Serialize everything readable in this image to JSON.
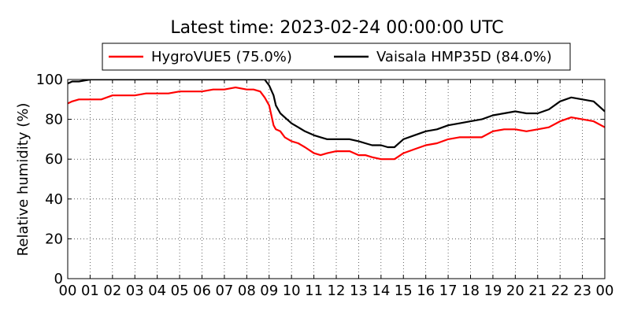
{
  "chart_data": {
    "type": "line",
    "title": "Latest time: 2023-02-24 00:00:00 UTC",
    "xlabel": "",
    "ylabel": "Relative humidity (%)",
    "xlim": [
      0,
      24
    ],
    "ylim": [
      0,
      100
    ],
    "x_ticks": [
      "00",
      "01",
      "02",
      "03",
      "04",
      "05",
      "06",
      "07",
      "08",
      "09",
      "10",
      "11",
      "12",
      "13",
      "14",
      "15",
      "16",
      "17",
      "18",
      "19",
      "20",
      "21",
      "22",
      "23",
      "00"
    ],
    "y_ticks": [
      0,
      20,
      40,
      60,
      80,
      100
    ],
    "grid": true,
    "legend_position": "top-center",
    "series": [
      {
        "name": "HygroVUE5 (75.0%)",
        "color": "#ff0000",
        "x": [
          0.0,
          0.2,
          0.5,
          1.0,
          1.5,
          2.0,
          2.5,
          3.0,
          3.5,
          4.0,
          4.5,
          5.0,
          5.5,
          6.0,
          6.5,
          7.0,
          7.5,
          8.0,
          8.3,
          8.6,
          8.8,
          9.0,
          9.1,
          9.2,
          9.3,
          9.5,
          9.7,
          10.0,
          10.3,
          10.6,
          11.0,
          11.3,
          11.6,
          12.0,
          12.3,
          12.6,
          13.0,
          13.3,
          13.6,
          14.0,
          14.3,
          14.6,
          15.0,
          15.5,
          16.0,
          16.5,
          17.0,
          17.5,
          18.0,
          18.5,
          19.0,
          19.5,
          20.0,
          20.5,
          21.0,
          21.5,
          22.0,
          22.5,
          23.0,
          23.5,
          24.0
        ],
        "values": [
          88,
          89,
          90,
          90,
          90,
          92,
          92,
          92,
          93,
          93,
          93,
          94,
          94,
          94,
          95,
          95,
          96,
          95,
          95,
          94,
          91,
          87,
          82,
          77,
          75,
          74,
          71,
          69,
          68,
          66,
          63,
          62,
          63,
          64,
          64,
          64,
          62,
          62,
          61,
          60,
          60,
          60,
          63,
          65,
          67,
          68,
          70,
          71,
          71,
          71,
          74,
          75,
          75,
          74,
          75,
          76,
          79,
          81,
          80,
          79,
          76
        ]
      },
      {
        "name": "Vaisala HMP35D (84.0%)",
        "color": "#000000",
        "x": [
          0.0,
          0.2,
          0.5,
          1.0,
          1.5,
          2.0,
          3.0,
          4.0,
          5.0,
          6.0,
          7.0,
          8.0,
          8.8,
          9.0,
          9.2,
          9.3,
          9.5,
          9.7,
          10.0,
          10.3,
          10.6,
          11.0,
          11.3,
          11.6,
          12.0,
          12.3,
          12.6,
          13.0,
          13.3,
          13.6,
          14.0,
          14.3,
          14.6,
          15.0,
          15.5,
          16.0,
          16.5,
          17.0,
          17.5,
          18.0,
          18.5,
          19.0,
          19.5,
          20.0,
          20.5,
          21.0,
          21.5,
          22.0,
          22.5,
          23.0,
          23.5,
          24.0
        ],
        "values": [
          98,
          99,
          99,
          100,
          100,
          100,
          100,
          100,
          100,
          100,
          100,
          100,
          100,
          97,
          92,
          87,
          83,
          81,
          78,
          76,
          74,
          72,
          71,
          70,
          70,
          70,
          70,
          69,
          68,
          67,
          67,
          66,
          66,
          70,
          72,
          74,
          75,
          77,
          78,
          79,
          80,
          82,
          83,
          84,
          83,
          83,
          85,
          89,
          91,
          90,
          89,
          84
        ]
      }
    ]
  }
}
